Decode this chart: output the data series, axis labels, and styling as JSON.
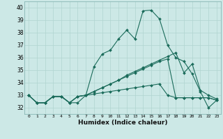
{
  "xlabel": "Humidex (Indice chaleur)",
  "bg_color": "#cce8e6",
  "line_color": "#1a6b5a",
  "grid_color": "#b0d4d0",
  "xlim": [
    -0.5,
    23.5
  ],
  "ylim": [
    31.5,
    40.5
  ],
  "xticks": [
    0,
    1,
    2,
    3,
    4,
    5,
    6,
    7,
    8,
    9,
    10,
    11,
    12,
    13,
    14,
    15,
    16,
    17,
    18,
    19,
    20,
    21,
    22,
    23
  ],
  "yticks": [
    32,
    33,
    34,
    35,
    36,
    37,
    38,
    39,
    40
  ],
  "series": [
    [
      33.0,
      32.4,
      32.4,
      32.9,
      32.9,
      32.4,
      32.4,
      33.0,
      35.3,
      36.3,
      36.6,
      37.5,
      38.2,
      37.5,
      39.75,
      39.8,
      39.1,
      37.0,
      36.0,
      35.7,
      34.7,
      33.3,
      32.0,
      32.6
    ],
    [
      33.0,
      32.4,
      32.4,
      32.9,
      32.9,
      32.4,
      32.9,
      33.0,
      33.3,
      33.6,
      33.9,
      34.2,
      34.6,
      34.9,
      35.2,
      35.5,
      35.8,
      36.1,
      36.4,
      34.8,
      35.5,
      33.4,
      33.0,
      32.7
    ],
    [
      33.0,
      32.4,
      32.4,
      32.9,
      32.9,
      32.4,
      32.9,
      33.0,
      33.3,
      33.6,
      33.9,
      34.2,
      34.5,
      34.8,
      35.1,
      35.4,
      35.7,
      35.9,
      32.8,
      32.8,
      32.8,
      32.8,
      32.8,
      32.6
    ],
    [
      33.0,
      32.4,
      32.4,
      32.9,
      32.9,
      32.4,
      32.9,
      33.0,
      33.1,
      33.2,
      33.3,
      33.4,
      33.5,
      33.6,
      33.7,
      33.8,
      33.9,
      33.0,
      32.8,
      32.8,
      32.8,
      32.8,
      32.8,
      32.6
    ]
  ]
}
